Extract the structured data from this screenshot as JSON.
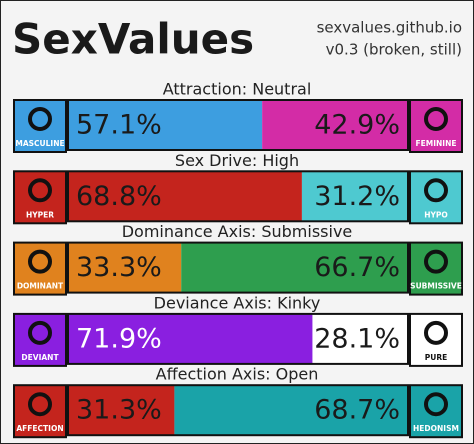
{
  "header": {
    "title": "SexValues",
    "site": "sexvalues.github.io",
    "version": "v0.3 (broken, still)"
  },
  "axes": [
    {
      "title": "Attraction: Neutral",
      "left": {
        "label": "MASCULINE",
        "value": 57.1,
        "value_label": "57.1%",
        "color": "#3d9ee0"
      },
      "right": {
        "label": "FEMININE",
        "value": 42.9,
        "value_label": "42.9%",
        "color": "#d32ca6"
      }
    },
    {
      "title": "Sex Drive: High",
      "left": {
        "label": "HYPER",
        "value": 68.8,
        "value_label": "68.8%",
        "color": "#c4241d"
      },
      "right": {
        "label": "HYPO",
        "value": 31.2,
        "value_label": "31.2%",
        "color": "#4ec9d0"
      }
    },
    {
      "title": "Dominance Axis: Submissive",
      "left": {
        "label": "DOMINANT",
        "value": 33.3,
        "value_label": "33.3%",
        "color": "#e0821e"
      },
      "right": {
        "label": "SUBMISSIVE",
        "value": 66.7,
        "value_label": "66.7%",
        "color": "#2e9e4e"
      }
    },
    {
      "title": "Deviance Axis: Kinky",
      "left": {
        "label": "DEVIANT",
        "value": 71.9,
        "value_label": "71.9%",
        "color": "#8a1fe0"
      },
      "right": {
        "label": "PURE",
        "value": 28.1,
        "value_label": "28.1%",
        "color": "#ffffff"
      }
    },
    {
      "title": "Affection Axis: Open",
      "left": {
        "label": "AFFECTION",
        "value": 31.3,
        "value_label": "31.3%",
        "color": "#c4241d"
      },
      "right": {
        "label": "HEDONISM",
        "value": 68.7,
        "value_label": "68.7%",
        "color": "#1aa3a8"
      }
    }
  ]
}
